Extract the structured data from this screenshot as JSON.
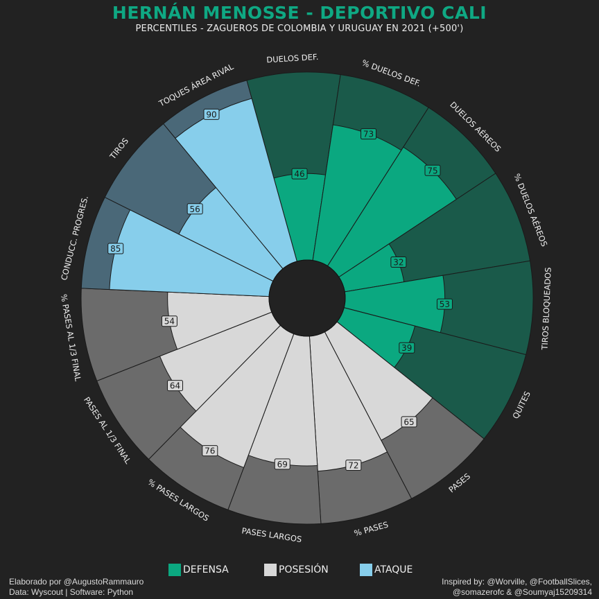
{
  "header": {
    "title": "HERNÁN MENOSSE - DEPORTIVO CALI",
    "subtitle": "PERCENTILES - ZAGUEROS DE COLOMBIA Y URUGUAY EN 2021 (+500')"
  },
  "legend": [
    {
      "label": "DEFENSA",
      "color": "#0ba880"
    },
    {
      "label": "POSESIÓN",
      "color": "#d8d8d8"
    },
    {
      "label": "ATAQUE",
      "color": "#87ceeb"
    }
  ],
  "credits": {
    "left_line1": "Elaborado por @AugustoRammauro",
    "left_line2": "Data: Wyscout | Software: Python",
    "right_line1": "Inspired by: @Worville, @FootballSlices,",
    "right_line2": "@somazerofc & @Soumyaj15209314"
  },
  "colors": {
    "background": "#222222",
    "defense_fill": "#0ba880",
    "defense_bg": "#1a5a4a",
    "possession_fill": "#d8d8d8",
    "possession_bg": "#6b6b6b",
    "attack_fill": "#87ceeb",
    "attack_bg": "#4a6878",
    "edge": "#1a1a1a"
  },
  "chart_data": {
    "type": "polar-bar",
    "title": "HERNÁN MENOSSE - DEPORTIVO CALI",
    "subtitle": "PERCENTILES - ZAGUEROS DE COLOMBIA Y URUGUAY EN 2021 (+500')",
    "range": [
      0,
      100
    ],
    "params": [
      {
        "label": "DUELOS DEF.",
        "value": 46,
        "group": "DEFENSA"
      },
      {
        "label": "% DUELOS DEF.",
        "value": 73,
        "group": "DEFENSA"
      },
      {
        "label": "DUELOS AÉREOS",
        "value": 75,
        "group": "DEFENSA"
      },
      {
        "label": "% DUELOS AÉREOS",
        "value": 32,
        "group": "DEFENSA"
      },
      {
        "label": "TIROS BLOQUEADOS",
        "value": 53,
        "group": "DEFENSA"
      },
      {
        "label": "QUITES",
        "value": 39,
        "group": "DEFENSA"
      },
      {
        "label": "PASES",
        "value": 65,
        "group": "POSESIÓN"
      },
      {
        "label": "% PASES",
        "value": 72,
        "group": "POSESIÓN"
      },
      {
        "label": "PASES LARGOS",
        "value": 69,
        "group": "POSESIÓN"
      },
      {
        "label": "% PASES LARGOS",
        "value": 76,
        "group": "POSESIÓN"
      },
      {
        "label": "PASES AL 1/3 FINAL",
        "value": 64,
        "group": "POSESIÓN"
      },
      {
        "label": "% PASES AL 1/3 FINAL",
        "value": 54,
        "group": "POSESIÓN"
      },
      {
        "label": "CONDUCC. PROGRES.",
        "value": 85,
        "group": "ATAQUE"
      },
      {
        "label": "TIROS",
        "value": 56,
        "group": "ATAQUE"
      },
      {
        "label": "TOQUES ÁREA RIVAL",
        "value": 90,
        "group": "ATAQUE"
      }
    ]
  }
}
